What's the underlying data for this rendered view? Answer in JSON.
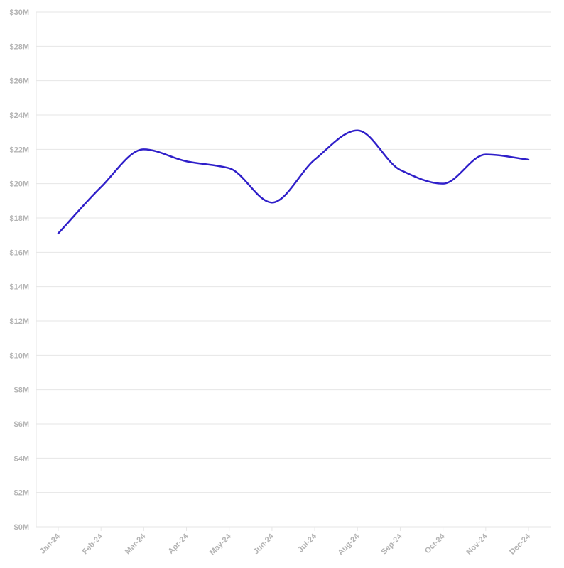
{
  "chart_data": {
    "type": "line",
    "title": "",
    "xlabel": "",
    "ylabel": "",
    "categories": [
      "Jan-24",
      "Feb-24",
      "Mar-24",
      "Apr-24",
      "May-24",
      "Jun-24",
      "Jul-24",
      "Aug-24",
      "Sep-24",
      "Oct-24",
      "Nov-24",
      "Dec-24"
    ],
    "series": [
      {
        "values": [
          17.1,
          19.8,
          22.0,
          21.3,
          20.9,
          18.9,
          21.4,
          23.1,
          20.8,
          20.0,
          21.7,
          21.4
        ]
      }
    ],
    "y_ticks": [
      "$0M",
      "$2M",
      "$4M",
      "$6M",
      "$8M",
      "$10M",
      "$12M",
      "$14M",
      "$16M",
      "$18M",
      "$20M",
      "$22M",
      "$24M",
      "$26M",
      "$28M",
      "$30M"
    ],
    "y_tick_values": [
      0,
      2,
      4,
      6,
      8,
      10,
      12,
      14,
      16,
      18,
      20,
      22,
      24,
      26,
      28,
      30
    ],
    "ylim": [
      0,
      30
    ],
    "grid": true,
    "legend": "none",
    "colors": {
      "line": "#2f1fc9",
      "grid": "#e6e6e6",
      "tick_text": "#b3b3b3"
    }
  }
}
